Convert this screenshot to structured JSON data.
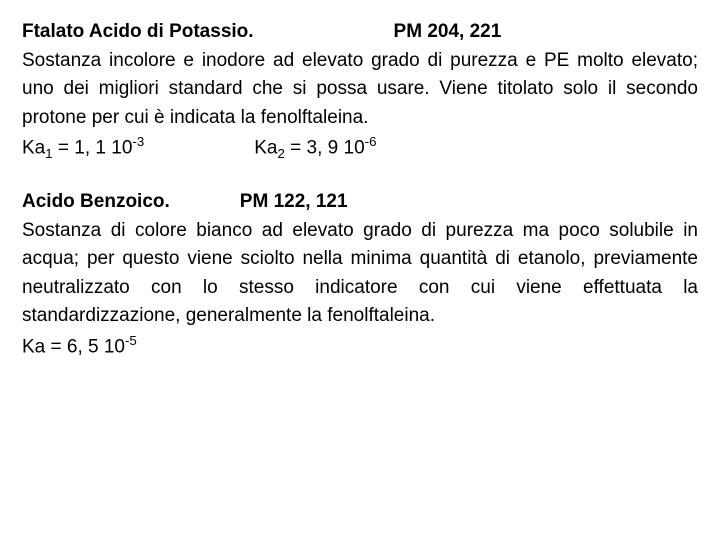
{
  "section1": {
    "title": "Ftalato Acido di Potassio.",
    "pm": "PM 204, 221",
    "body": "Sostanza incolore e inodore ad elevato grado di purezza e PE molto elevato; uno dei migliori standard che si possa usare. Viene titolato solo il secondo protone per cui è indicata la fenolftaleina.",
    "ka1_label": "Ka",
    "ka1_sub": "1",
    "ka1_eq": " = 1, 1 10",
    "ka1_sup": "-3",
    "ka2_label": "Ka",
    "ka2_sub": "2",
    "ka2_eq": " = 3, 9 10",
    "ka2_sup": "-6"
  },
  "section2": {
    "title": "Acido Benzoico.",
    "pm": "PM 122, 121",
    "body": "Sostanza di colore bianco ad elevato grado di purezza ma poco solubile in acqua; per questo viene sciolto nella minima quantità di etanolo, previamente neutralizzato con lo stesso indicatore con cui viene effettuata la standardizzazione, generalmente la fenolftaleina.",
    "ka_label": "Ka = 6, 5 10",
    "ka_sup": "-5"
  },
  "style": {
    "font_family": "Verdana, Geneva, sans-serif",
    "font_size_pt": 19,
    "text_color": "#000000",
    "background_color": "#ffffff",
    "line_height": 1.5,
    "text_align_body": "justify"
  }
}
